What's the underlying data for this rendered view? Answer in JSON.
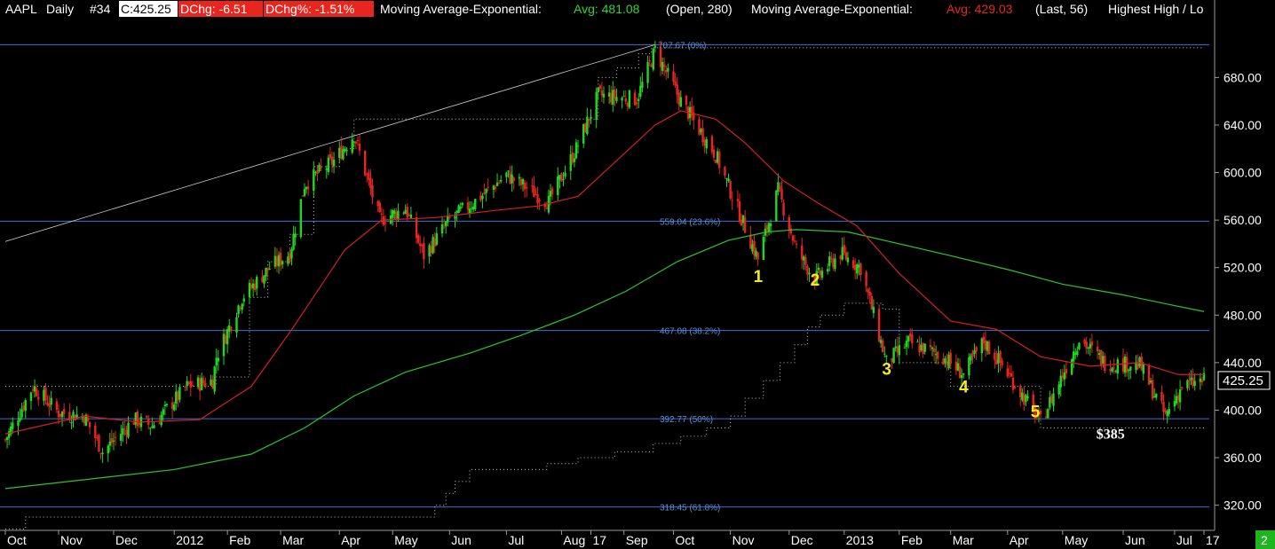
{
  "header": {
    "symbol": "AAPL",
    "period": "Daily",
    "chart_no": "#34",
    "close": "C:425.25",
    "dchg": "DChg: -6.51",
    "dchg_pct": "DChg%: -1.51%",
    "ma1_name": "Moving Average-Exponential:",
    "ma1_avg": "Avg: 481.08",
    "ma1_params": "(Open, 280)",
    "ma2_name": "Moving Average-Exponential:",
    "ma2_avg": "Avg: 429.03",
    "ma2_params": "(Last, 56)",
    "extra": "Highest High / Lo"
  },
  "price_label": "425.25",
  "status_badge": "2",
  "colors": {
    "up": "#1fd81f",
    "down": "#e8251f",
    "ma_long": "#2fc42f",
    "ma_short": "#d42020",
    "fib": "#3d6fd8",
    "wave": "#f4ea1f"
  },
  "chart_data": {
    "type": "candlestick",
    "ylim": [
      290,
      720
    ],
    "y_ticks": [
      320,
      360,
      400,
      440,
      480,
      520,
      560,
      600,
      640,
      680
    ],
    "y_tick_labels": [
      "320.00",
      "360.00",
      "400.00",
      "440.00",
      "480.00",
      "520.00",
      "560.00",
      "600.00",
      "640.00",
      "680.00"
    ],
    "x_tick_labels": [
      "Oct",
      "Nov",
      "Dec",
      "2012",
      "Feb",
      "Mar",
      "Apr",
      "May",
      "Jun",
      "Jul",
      "Aug",
      "17",
      "Sep",
      "Oct",
      "Nov",
      "Dec",
      "2013",
      "Feb",
      "Mar",
      "Apr",
      "May",
      "Jun",
      "Jul",
      "17"
    ],
    "x_tick_dates": [
      "2011-10-03",
      "2011-11-01",
      "2011-12-01",
      "2012-01-03",
      "2012-02-01",
      "2012-03-01",
      "2012-04-02",
      "2012-05-01",
      "2012-06-01",
      "2012-07-02",
      "2012-08-01",
      "2012-08-17",
      "2012-09-04",
      "2012-10-01",
      "2012-11-01",
      "2012-12-03",
      "2013-01-02",
      "2013-02-01",
      "2013-03-01",
      "2013-04-01",
      "2013-05-01",
      "2013-06-03",
      "2013-07-01",
      "2013-07-17"
    ],
    "price_path": [
      [
        "2011-10-03",
        375
      ],
      [
        "2011-10-18",
        420
      ],
      [
        "2011-11-01",
        398
      ],
      [
        "2011-11-15",
        395
      ],
      [
        "2011-11-25",
        365
      ],
      [
        "2011-12-12",
        392
      ],
      [
        "2011-12-22",
        387
      ],
      [
        "2012-01-10",
        420
      ],
      [
        "2012-01-24",
        425
      ],
      [
        "2012-01-26",
        445
      ],
      [
        "2012-02-09",
        495
      ],
      [
        "2012-02-24",
        520
      ],
      [
        "2012-03-06",
        532
      ],
      [
        "2012-03-14",
        590
      ],
      [
        "2012-03-30",
        610
      ],
      [
        "2012-04-10",
        632
      ],
      [
        "2012-04-24",
        560
      ],
      [
        "2012-05-08",
        570
      ],
      [
        "2012-05-18",
        530
      ],
      [
        "2012-06-01",
        560
      ],
      [
        "2012-06-20",
        582
      ],
      [
        "2012-07-02",
        598
      ],
      [
        "2012-07-25",
        575
      ],
      [
        "2012-08-09",
        620
      ],
      [
        "2012-08-21",
        665
      ],
      [
        "2012-09-11",
        662
      ],
      [
        "2012-09-21",
        703
      ],
      [
        "2012-10-05",
        660
      ],
      [
        "2012-10-24",
        615
      ],
      [
        "2012-11-16",
        527
      ],
      [
        "2012-11-27",
        585
      ],
      [
        "2012-12-07",
        535
      ],
      [
        "2012-12-17",
        510
      ],
      [
        "2012-12-31",
        532
      ],
      [
        "2013-01-11",
        520
      ],
      [
        "2013-01-25",
        440
      ],
      [
        "2013-02-06",
        457
      ],
      [
        "2013-02-25",
        445
      ],
      [
        "2013-03-08",
        430
      ],
      [
        "2013-03-19",
        458
      ],
      [
        "2013-03-28",
        440
      ],
      [
        "2013-04-19",
        390
      ],
      [
        "2013-05-10",
        460
      ],
      [
        "2013-05-24",
        440
      ],
      [
        "2013-06-12",
        438
      ],
      [
        "2013-06-26",
        395
      ],
      [
        "2013-07-05",
        420
      ],
      [
        "2013-07-17",
        425
      ]
    ],
    "series": [
      {
        "name": "Moving Average-Exponential (Open, 280)",
        "points": [
          [
            "2011-10-03",
            334
          ],
          [
            "2012-01-03",
            350
          ],
          [
            "2012-02-14",
            363
          ],
          [
            "2012-03-14",
            385
          ],
          [
            "2012-04-10",
            412
          ],
          [
            "2012-05-08",
            432
          ],
          [
            "2012-06-12",
            448
          ],
          [
            "2012-07-10",
            463
          ],
          [
            "2012-08-08",
            480
          ],
          [
            "2012-09-05",
            500
          ],
          [
            "2012-10-03",
            525
          ],
          [
            "2012-10-31",
            543
          ],
          [
            "2012-11-21",
            550
          ],
          [
            "2012-12-07",
            552
          ],
          [
            "2013-01-04",
            550
          ],
          [
            "2013-02-01",
            540
          ],
          [
            "2013-03-01",
            530
          ],
          [
            "2013-04-02",
            518
          ],
          [
            "2013-05-01",
            506
          ],
          [
            "2013-06-03",
            497
          ],
          [
            "2013-07-01",
            488
          ],
          [
            "2013-07-17",
            483
          ]
        ]
      },
      {
        "name": "Moving Average-Exponential (Last, 56)",
        "points": [
          [
            "2011-10-03",
            380
          ],
          [
            "2011-11-15",
            395
          ],
          [
            "2011-12-15",
            390
          ],
          [
            "2012-01-17",
            392
          ],
          [
            "2012-02-14",
            420
          ],
          [
            "2012-03-08",
            470
          ],
          [
            "2012-04-05",
            535
          ],
          [
            "2012-04-25",
            560
          ],
          [
            "2012-05-24",
            562
          ],
          [
            "2012-06-25",
            568
          ],
          [
            "2012-07-20",
            572
          ],
          [
            "2012-08-10",
            580
          ],
          [
            "2012-08-31",
            610
          ],
          [
            "2012-09-21",
            640
          ],
          [
            "2012-10-05",
            652
          ],
          [
            "2012-10-24",
            645
          ],
          [
            "2012-11-09",
            625
          ],
          [
            "2012-11-30",
            593
          ],
          [
            "2012-12-18",
            575
          ],
          [
            "2013-01-09",
            555
          ],
          [
            "2013-02-01",
            515
          ],
          [
            "2013-03-01",
            475
          ],
          [
            "2013-03-26",
            468
          ],
          [
            "2013-04-19",
            445
          ],
          [
            "2013-05-16",
            437
          ],
          [
            "2013-06-12",
            440
          ],
          [
            "2013-07-03",
            430
          ],
          [
            "2013-07-17",
            430
          ]
        ]
      }
    ],
    "trendline": [
      [
        "2011-10-03",
        542
      ],
      [
        "2012-09-21",
        707.67
      ]
    ],
    "fibonacci": [
      {
        "price": 707.67,
        "label": "707.67",
        "pct": "(0%)"
      },
      {
        "price": 559.04,
        "label": "559.04",
        "pct": "(23.6%)"
      },
      {
        "price": 467.08,
        "label": "467.08",
        "pct": "(38.2%)"
      },
      {
        "price": 392.77,
        "label": "392.77",
        "pct": "(50%)"
      },
      {
        "price": 318.45,
        "label": "318.45",
        "pct": "(61.8%)"
      }
    ],
    "highest_high_steps": [
      [
        "2011-10-03",
        420
      ],
      [
        "2012-01-26",
        428
      ],
      [
        "2012-02-13",
        495
      ],
      [
        "2012-02-23",
        525
      ],
      [
        "2012-03-06",
        548
      ],
      [
        "2012-03-19",
        605
      ],
      [
        "2012-04-02",
        620
      ],
      [
        "2012-04-10",
        645
      ],
      [
        "2012-08-21",
        680
      ],
      [
        "2012-08-31",
        688
      ],
      [
        "2012-09-12",
        700
      ],
      [
        "2012-09-19",
        705
      ],
      [
        "2012-10-03",
        705
      ],
      [
        "2012-10-30",
        705
      ],
      [
        "2013-07-17",
        705
      ]
    ],
    "lowest_low_steps": [
      [
        "2011-10-03",
        300
      ],
      [
        "2011-10-14",
        310
      ],
      [
        "2012-05-24",
        320
      ],
      [
        "2012-05-30",
        330
      ],
      [
        "2012-06-04",
        340
      ],
      [
        "2012-06-12",
        350
      ],
      [
        "2012-07-24",
        355
      ],
      [
        "2012-08-10",
        360
      ],
      [
        "2012-08-30",
        365
      ],
      [
        "2012-09-20",
        372
      ],
      [
        "2012-10-05",
        378
      ],
      [
        "2012-10-19",
        385
      ],
      [
        "2012-11-01",
        395
      ],
      [
        "2012-11-09",
        410
      ],
      [
        "2012-11-19",
        425
      ],
      [
        "2012-11-28",
        440
      ],
      [
        "2012-12-06",
        455
      ],
      [
        "2012-12-13",
        470
      ],
      [
        "2012-12-20",
        480
      ],
      [
        "2013-01-02",
        490
      ],
      [
        "2013-01-23",
        485
      ],
      [
        "2013-02-01",
        440
      ],
      [
        "2013-03-01",
        420
      ],
      [
        "2013-04-19",
        385
      ],
      [
        "2013-07-17",
        385
      ]
    ],
    "wave_labels": [
      {
        "label": "1",
        "date": "2012-11-16",
        "price": 508
      },
      {
        "label": "2",
        "date": "2012-12-17",
        "price": 505
      },
      {
        "label": "3",
        "date": "2013-01-25",
        "price": 430
      },
      {
        "label": "4",
        "date": "2013-03-08",
        "price": 415
      },
      {
        "label": "5",
        "date": "2013-04-16",
        "price": 394
      }
    ],
    "support_label": {
      "text": "$385",
      "date": "2013-05-29",
      "price": 376
    }
  }
}
